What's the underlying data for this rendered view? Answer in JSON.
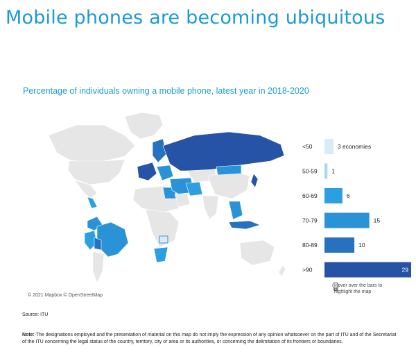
{
  "page": {
    "title": "Mobile phones are becoming ubiquitous",
    "subtitle": "Percentage of individuals owning a mobile phone, latest year in 2018-2020",
    "attribution": "© 2021 Mapbox © OpenStreetMap",
    "hover_hint": "Hover over the bars to highlight the map",
    "source": "Source: ITU",
    "note_label": "Note:",
    "note_text": " The designations employed and the presentation of material on this map do not imply the expression of any opinion whatsoever on the part of ITU and of the Secretariat of the ITU concerning the legal status of the country, territory, city or area or its authorities, or concerning the delimitation of its frontiers or boundaries."
  },
  "colors": {
    "accent": "#1b9ad6",
    "land_no_data": "#e6e6e6",
    "land_stroke": "#ffffff"
  },
  "icons": [
    "pointer-hand-icon"
  ],
  "chart_data": {
    "type": "bar",
    "orientation": "horizontal",
    "categories": [
      "<50",
      "50-59",
      "60-69",
      "70-79",
      "80-89",
      ">90"
    ],
    "values": [
      3,
      1,
      6,
      15,
      10,
      29
    ],
    "value_labels": [
      "3 economies",
      "1",
      "6",
      "15",
      "10",
      "29"
    ],
    "colors": [
      "#d7ecf7",
      "#a7d8f1",
      "#2b9fe0",
      "#2a93d8",
      "#2672bf",
      "#2653a6"
    ],
    "xlim": [
      0,
      29
    ]
  }
}
